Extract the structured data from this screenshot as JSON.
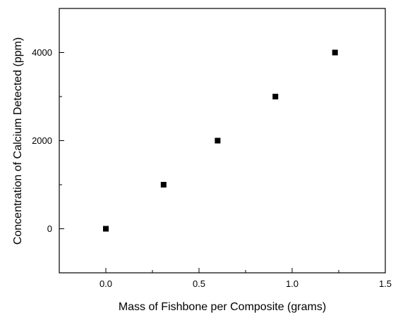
{
  "chart_data": {
    "type": "scatter",
    "title": "",
    "xlabel": "Mass of Fishbone per Composite (grams)",
    "ylabel": "Concentration of Calcium Detected (ppm)",
    "xlim": [
      -0.25,
      1.5
    ],
    "ylim": [
      -1000,
      5000
    ],
    "x_ticks": [
      0.0,
      0.5,
      1.0,
      1.5
    ],
    "x_tick_labels": [
      "0.0",
      "0.5",
      "1.0",
      "1.5"
    ],
    "y_ticks": [
      0,
      2000,
      4000
    ],
    "y_tick_labels": [
      "0",
      "2000",
      "4000"
    ],
    "grid": false,
    "legend": "none",
    "marker": "square",
    "marker_color": "#000000",
    "series": [
      {
        "x": [
          0.0,
          0.31,
          0.6,
          0.91,
          1.23
        ],
        "y": [
          0,
          1000,
          2000,
          3000,
          4000
        ]
      }
    ]
  }
}
